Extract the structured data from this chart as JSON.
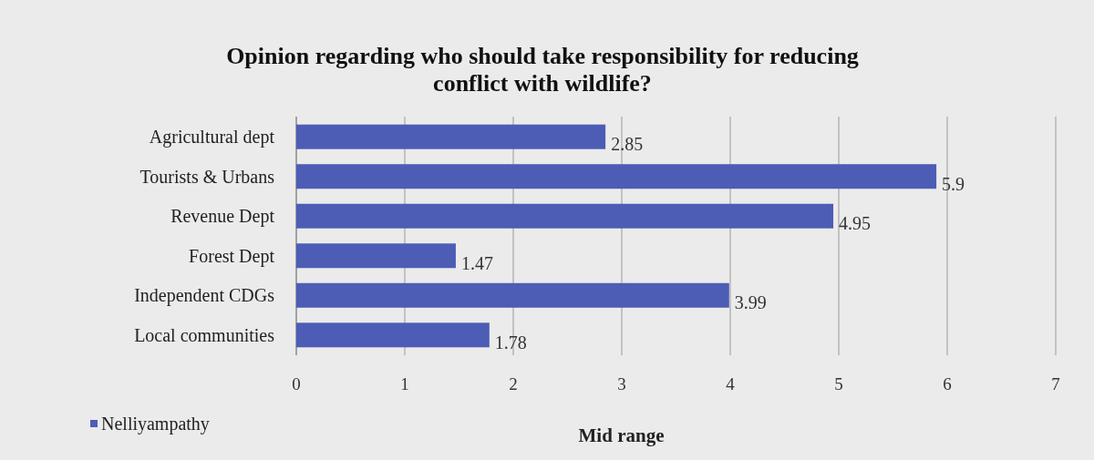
{
  "chart_data": {
    "type": "bar",
    "orientation": "horizontal",
    "title": "Opinion regarding who should take responsibility for reducing conflict with wildlife?",
    "xlabel": "Mid range",
    "categories": [
      "Agricultural dept",
      "Tourists & Urbans",
      "Revenue Dept",
      "Forest Dept",
      "Independent CDGs",
      "Local communities"
    ],
    "series": [
      {
        "name": "Nelliyampathy",
        "color": "#4d5db5",
        "values": [
          2.85,
          5.9,
          4.95,
          1.47,
          3.99,
          1.78
        ]
      }
    ],
    "xlim": [
      0,
      7
    ],
    "xticks": [
      0,
      1,
      2,
      3,
      4,
      5,
      6,
      7
    ],
    "grid": "x",
    "legend": "bottom left",
    "data_labels": true
  }
}
